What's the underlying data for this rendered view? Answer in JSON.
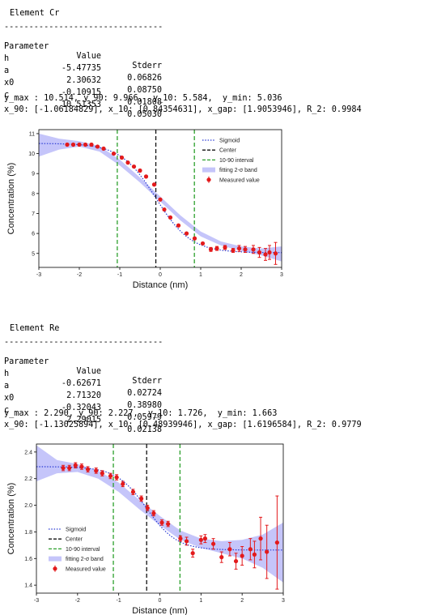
{
  "blocks": [
    {
      "element_title": "Element Cr",
      "divider": "--------------------------------",
      "table": {
        "headers": [
          "Parameter",
          "Value",
          "Stderr"
        ],
        "rows": [
          [
            "h",
            "-5.47735",
            "0.06826"
          ],
          [
            "a",
            "2.30632",
            "0.08750"
          ],
          [
            "x0",
            "-0.10915",
            "0.01808"
          ],
          [
            "c",
            "10.51353",
            "0.05030"
          ]
        ]
      },
      "summary_line1": "y_max : 10.514, y_90: 9.966,  y_10: 5.584,  y_min: 5.036",
      "summary_line2": "x_90: [-1.06184829], x_10: [0.84354631], x_gap: [1.9053946], R_2: 0.9984"
    },
    {
      "element_title": "Element Re",
      "divider": "--------------------------------",
      "table": {
        "headers": [
          "Parameter",
          "Value",
          "Stderr"
        ],
        "rows": [
          [
            "h",
            "-0.62671",
            "0.02724"
          ],
          [
            "a",
            "2.71320",
            "0.38980"
          ],
          [
            "x0",
            "-0.32043",
            "0.05979"
          ],
          [
            "c",
            "2.29015",
            "0.02138"
          ]
        ]
      },
      "summary_line1": "y_max : 2.290, y_90: 2.227,  y_10: 1.726,  y_min: 1.663",
      "summary_line2": "x_90: [-1.13025894], x_10: [0.48939946], x_gap: [1.6196584], R_2: 0.9779"
    }
  ],
  "chart_data": [
    {
      "type": "scatter",
      "xlabel": "Distance (nm)",
      "ylabel": "Concentration (%)",
      "xlim": [
        -3,
        3
      ],
      "ylim": [
        4.3,
        11.2
      ],
      "xticks": [
        "-3",
        "-2",
        "-1",
        "0",
        "1",
        "2",
        "3"
      ],
      "yticks": [
        "5",
        "6",
        "7",
        "8",
        "9",
        "10",
        "11"
      ],
      "legend_position": "top-right",
      "legend": [
        "Sigmoid",
        "Center",
        "10-90 interval",
        "fitting 2-σ band",
        "Measured value"
      ],
      "center_x": -0.10915,
      "interval_x": [
        -1.06184829,
        0.84354631
      ],
      "sigmoid": {
        "h": -5.47735,
        "a": 2.30632,
        "x0": -0.10915,
        "c": 10.51353
      },
      "band": [
        {
          "x": -3.0,
          "lo": 9.85,
          "hi": 11.0
        },
        {
          "x": -2.5,
          "lo": 10.2,
          "hi": 10.75
        },
        {
          "x": -2.0,
          "lo": 10.35,
          "hi": 10.62
        },
        {
          "x": -1.5,
          "lo": 10.1,
          "hi": 10.38
        },
        {
          "x": -1.0,
          "lo": 9.4,
          "hi": 9.7
        },
        {
          "x": -0.5,
          "lo": 8.55,
          "hi": 8.8
        },
        {
          "x": 0.0,
          "lo": 7.6,
          "hi": 7.85
        },
        {
          "x": 0.5,
          "lo": 6.65,
          "hi": 6.9
        },
        {
          "x": 1.0,
          "lo": 5.85,
          "hi": 6.1
        },
        {
          "x": 1.5,
          "lo": 5.4,
          "hi": 5.6
        },
        {
          "x": 2.0,
          "lo": 5.12,
          "hi": 5.35
        },
        {
          "x": 2.5,
          "lo": 4.9,
          "hi": 5.25
        },
        {
          "x": 3.0,
          "lo": 4.6,
          "hi": 5.35
        }
      ],
      "points": [
        {
          "x": -2.3,
          "y": 10.45,
          "err": 0.05
        },
        {
          "x": -2.15,
          "y": 10.45,
          "err": 0.05
        },
        {
          "x": -2.0,
          "y": 10.45,
          "err": 0.05
        },
        {
          "x": -1.85,
          "y": 10.45,
          "err": 0.05
        },
        {
          "x": -1.7,
          "y": 10.45,
          "err": 0.05
        },
        {
          "x": -1.55,
          "y": 10.35,
          "err": 0.05
        },
        {
          "x": -1.4,
          "y": 10.25,
          "err": 0.05
        },
        {
          "x": -1.15,
          "y": 10.0,
          "err": 0.05
        },
        {
          "x": -0.95,
          "y": 9.8,
          "err": 0.05
        },
        {
          "x": -0.8,
          "y": 9.55,
          "err": 0.05
        },
        {
          "x": -0.65,
          "y": 9.35,
          "err": 0.05
        },
        {
          "x": -0.5,
          "y": 9.15,
          "err": 0.05
        },
        {
          "x": -0.35,
          "y": 8.85,
          "err": 0.05
        },
        {
          "x": -0.15,
          "y": 8.45,
          "err": 0.05
        },
        {
          "x": 0.0,
          "y": 7.7,
          "err": 0.05
        },
        {
          "x": 0.1,
          "y": 7.2,
          "err": 0.05
        },
        {
          "x": 0.25,
          "y": 6.8,
          "err": 0.05
        },
        {
          "x": 0.45,
          "y": 6.4,
          "err": 0.05
        },
        {
          "x": 0.65,
          "y": 6.0,
          "err": 0.05
        },
        {
          "x": 0.85,
          "y": 5.75,
          "err": 0.05
        },
        {
          "x": 1.05,
          "y": 5.5,
          "err": 0.05
        },
        {
          "x": 1.25,
          "y": 5.2,
          "err": 0.1
        },
        {
          "x": 1.4,
          "y": 5.25,
          "err": 0.1
        },
        {
          "x": 1.6,
          "y": 5.3,
          "err": 0.1
        },
        {
          "x": 1.8,
          "y": 5.15,
          "err": 0.1
        },
        {
          "x": 1.95,
          "y": 5.25,
          "err": 0.15
        },
        {
          "x": 2.1,
          "y": 5.2,
          "err": 0.15
        },
        {
          "x": 2.3,
          "y": 5.2,
          "err": 0.2
        },
        {
          "x": 2.45,
          "y": 5.05,
          "err": 0.25
        },
        {
          "x": 2.6,
          "y": 4.95,
          "err": 0.3
        },
        {
          "x": 2.7,
          "y": 5.05,
          "err": 0.35
        },
        {
          "x": 2.85,
          "y": 5.0,
          "err": 0.55
        }
      ]
    },
    {
      "type": "scatter",
      "xlabel": "Distance (nm)",
      "ylabel": "Concentration (%)",
      "xlim": [
        -3,
        3
      ],
      "ylim": [
        1.34,
        2.46
      ],
      "xticks": [
        "-3",
        "-2",
        "-1",
        "0",
        "1",
        "2",
        "3"
      ],
      "yticks": [
        "1.4",
        "1.6",
        "1.8",
        "2.0",
        "2.2",
        "2.4"
      ],
      "legend_position": "bottom-left",
      "legend": [
        "Sigmoid",
        "Center",
        "10-90 interval",
        "fitting 2-σ band",
        "Measured value"
      ],
      "center_x": -0.32043,
      "interval_x": [
        -1.13025894,
        0.48939946
      ],
      "sigmoid": {
        "h": -0.62671,
        "a": 2.7132,
        "x0": -0.32043,
        "c": 2.29015
      },
      "band": [
        {
          "x": -3.0,
          "lo": 2.18,
          "hi": 2.45
        },
        {
          "x": -2.5,
          "lo": 2.24,
          "hi": 2.34
        },
        {
          "x": -2.0,
          "lo": 2.25,
          "hi": 2.31
        },
        {
          "x": -1.5,
          "lo": 2.2,
          "hi": 2.26
        },
        {
          "x": -1.0,
          "lo": 2.1,
          "hi": 2.17
        },
        {
          "x": -0.5,
          "lo": 1.97,
          "hi": 2.04
        },
        {
          "x": 0.0,
          "lo": 1.85,
          "hi": 1.92
        },
        {
          "x": 0.5,
          "lo": 1.74,
          "hi": 1.81
        },
        {
          "x": 1.0,
          "lo": 1.68,
          "hi": 1.75
        },
        {
          "x": 1.5,
          "lo": 1.64,
          "hi": 1.73
        },
        {
          "x": 2.0,
          "lo": 1.6,
          "hi": 1.74
        },
        {
          "x": 2.5,
          "lo": 1.53,
          "hi": 1.78
        },
        {
          "x": 3.0,
          "lo": 1.42,
          "hi": 1.87
        }
      ],
      "points": [
        {
          "x": -2.35,
          "y": 2.28,
          "err": 0.02
        },
        {
          "x": -2.2,
          "y": 2.28,
          "err": 0.02
        },
        {
          "x": -2.05,
          "y": 2.3,
          "err": 0.02
        },
        {
          "x": -1.9,
          "y": 2.29,
          "err": 0.02
        },
        {
          "x": -1.75,
          "y": 2.27,
          "err": 0.02
        },
        {
          "x": -1.55,
          "y": 2.26,
          "err": 0.02
        },
        {
          "x": -1.4,
          "y": 2.24,
          "err": 0.02
        },
        {
          "x": -1.2,
          "y": 2.22,
          "err": 0.02
        },
        {
          "x": -1.05,
          "y": 2.21,
          "err": 0.02
        },
        {
          "x": -0.9,
          "y": 2.16,
          "err": 0.02
        },
        {
          "x": -0.65,
          "y": 2.1,
          "err": 0.02
        },
        {
          "x": -0.45,
          "y": 2.05,
          "err": 0.02
        },
        {
          "x": -0.3,
          "y": 1.98,
          "err": 0.02
        },
        {
          "x": -0.15,
          "y": 1.94,
          "err": 0.02
        },
        {
          "x": 0.05,
          "y": 1.87,
          "err": 0.02
        },
        {
          "x": 0.2,
          "y": 1.86,
          "err": 0.02
        },
        {
          "x": 0.5,
          "y": 1.75,
          "err": 0.02
        },
        {
          "x": 0.65,
          "y": 1.73,
          "err": 0.03
        },
        {
          "x": 0.8,
          "y": 1.64,
          "err": 0.03
        },
        {
          "x": 1.0,
          "y": 1.74,
          "err": 0.03
        },
        {
          "x": 1.1,
          "y": 1.75,
          "err": 0.03
        },
        {
          "x": 1.3,
          "y": 1.71,
          "err": 0.04
        },
        {
          "x": 1.5,
          "y": 1.61,
          "err": 0.04
        },
        {
          "x": 1.7,
          "y": 1.67,
          "err": 0.05
        },
        {
          "x": 1.85,
          "y": 1.58,
          "err": 0.06
        },
        {
          "x": 2.0,
          "y": 1.62,
          "err": 0.07
        },
        {
          "x": 2.2,
          "y": 1.67,
          "err": 0.08
        },
        {
          "x": 2.3,
          "y": 1.63,
          "err": 0.1
        },
        {
          "x": 2.45,
          "y": 1.75,
          "err": 0.16
        },
        {
          "x": 2.6,
          "y": 1.65,
          "err": 0.2
        },
        {
          "x": 2.85,
          "y": 1.72,
          "err": 0.35
        }
      ]
    }
  ]
}
